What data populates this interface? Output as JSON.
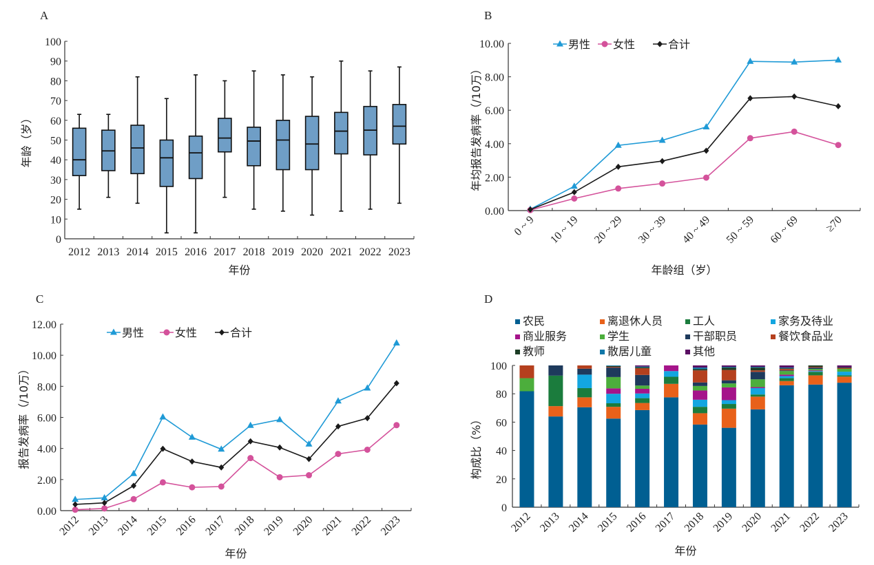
{
  "chart_data": [
    {
      "panel": "A",
      "type": "box",
      "xlabel": "年份",
      "ylabel": "年龄（岁）",
      "ylim": [
        0,
        100
      ],
      "yticks": [
        "0",
        "10",
        "20",
        "30",
        "40",
        "50",
        "60",
        "70",
        "80",
        "90",
        "100"
      ],
      "categories": [
        "2012",
        "2013",
        "2014",
        "2015",
        "2016",
        "2017",
        "2018",
        "2019",
        "2020",
        "2021",
        "2022",
        "2023"
      ],
      "boxes": [
        {
          "min": 15,
          "q1": 32,
          "median": 40,
          "q3": 56,
          "max": 63
        },
        {
          "min": 21,
          "q1": 34.5,
          "median": 44.5,
          "q3": 55,
          "max": 63
        },
        {
          "min": 18,
          "q1": 33,
          "median": 46,
          "q3": 57.5,
          "max": 82
        },
        {
          "min": 3,
          "q1": 26.5,
          "median": 41,
          "q3": 50,
          "max": 71
        },
        {
          "min": 3,
          "q1": 30.5,
          "median": 43.5,
          "q3": 52,
          "max": 83
        },
        {
          "min": 21,
          "q1": 44,
          "median": 51,
          "q3": 61,
          "max": 80
        },
        {
          "min": 15,
          "q1": 37,
          "median": 49.5,
          "q3": 56.5,
          "max": 85
        },
        {
          "min": 14,
          "q1": 35,
          "median": 50,
          "q3": 60,
          "max": 83
        },
        {
          "min": 12,
          "q1": 35,
          "median": 48,
          "q3": 62,
          "max": 82
        },
        {
          "min": 14,
          "q1": 43,
          "median": 54.5,
          "q3": 64,
          "max": 90
        },
        {
          "min": 15,
          "q1": 42.5,
          "median": 55,
          "q3": 67,
          "max": 85
        },
        {
          "min": 18,
          "q1": 48,
          "median": 57,
          "q3": 68,
          "max": 87
        }
      ],
      "box_color": "#6f9ec6"
    },
    {
      "panel": "B",
      "type": "line",
      "xlabel": "年龄组（岁）",
      "ylabel": "年均报告发病率（/10万）",
      "ylim": [
        0,
        10
      ],
      "yticks": [
        "0.00",
        "2.00",
        "4.00",
        "6.00",
        "8.00",
        "10.00"
      ],
      "categories": [
        "0 ~ 9",
        "10 ~ 19",
        "20 ~ 29",
        "30 ~ 39",
        "40 ~ 49",
        "50 ~ 59",
        "60 ~ 69",
        "≥70"
      ],
      "legend_position": "top",
      "series": [
        {
          "name": "男性",
          "color": "#1f9ad6",
          "marker": "triangle",
          "values": [
            0.08,
            1.45,
            3.9,
            4.2,
            5.0,
            8.92,
            8.88,
            9.0
          ]
        },
        {
          "name": "女性",
          "color": "#d4529b",
          "marker": "circle",
          "values": [
            0.03,
            0.72,
            1.32,
            1.62,
            1.97,
            4.33,
            4.72,
            3.92
          ]
        },
        {
          "name": "合计",
          "color": "#1a1a1a",
          "marker": "diamond",
          "values": [
            0.06,
            1.1,
            2.62,
            2.96,
            3.58,
            6.72,
            6.82,
            6.24
          ]
        }
      ]
    },
    {
      "panel": "C",
      "type": "line",
      "xlabel": "年份",
      "ylabel": "报告发病率（/10万）",
      "ylim": [
        0,
        12
      ],
      "yticks": [
        "0.00",
        "2.00",
        "4.00",
        "6.00",
        "8.00",
        "10.00",
        "12.00"
      ],
      "categories": [
        "2012",
        "2013",
        "2014",
        "2015",
        "2016",
        "2017",
        "2018",
        "2019",
        "2020",
        "2021",
        "2022",
        "2023"
      ],
      "legend_position": "top",
      "series": [
        {
          "name": "男性",
          "color": "#1f9ad6",
          "marker": "triangle",
          "values": [
            0.72,
            0.82,
            2.38,
            6.02,
            4.72,
            3.95,
            5.48,
            5.85,
            4.28,
            7.05,
            7.88,
            10.78
          ]
        },
        {
          "name": "女性",
          "color": "#d4529b",
          "marker": "circle",
          "values": [
            0.06,
            0.14,
            0.74,
            1.82,
            1.5,
            1.55,
            3.38,
            2.15,
            2.28,
            3.65,
            3.92,
            5.5
          ]
        },
        {
          "name": "合计",
          "color": "#1a1a1a",
          "marker": "diamond",
          "values": [
            0.4,
            0.5,
            1.6,
            3.98,
            3.16,
            2.78,
            4.46,
            4.06,
            3.32,
            5.42,
            5.95,
            8.2
          ]
        }
      ]
    },
    {
      "panel": "D",
      "type": "stacked-bar",
      "xlabel": "年份",
      "ylabel": "构成比（%）",
      "ylim": [
        0,
        100
      ],
      "yticks": [
        "0",
        "20",
        "40",
        "60",
        "80",
        "100"
      ],
      "categories": [
        "2012",
        "2013",
        "2014",
        "2015",
        "2016",
        "2017",
        "2018",
        "2019",
        "2020",
        "2021",
        "2022",
        "2023"
      ],
      "legend_position": "top",
      "series": [
        {
          "name": "农民",
          "color": "#005f92",
          "values": [
            81.8,
            64,
            70.5,
            62.5,
            68.5,
            77.5,
            58.3,
            56,
            69,
            86,
            86.5,
            87.8
          ]
        },
        {
          "name": "离退休人员",
          "color": "#e8611a",
          "values": [
            0,
            7.3,
            7,
            8.3,
            5,
            9.5,
            8,
            13.5,
            9,
            3,
            6.5,
            4.3
          ]
        },
        {
          "name": "工人",
          "color": "#1b7c3d",
          "values": [
            0,
            21.5,
            6.5,
            2.5,
            3.4,
            5,
            4.5,
            3.3,
            1.5,
            2,
            2.5,
            1
          ]
        },
        {
          "name": "家务及待业",
          "color": "#13a6e0",
          "values": [
            0,
            0,
            9.5,
            6.7,
            3.3,
            4,
            5,
            2.7,
            4.5,
            1.5,
            0.5,
            2.5
          ]
        },
        {
          "name": "商业服务",
          "color": "#a5148a",
          "values": [
            0,
            0,
            0,
            3.8,
            3.3,
            4,
            6.5,
            9,
            0.7,
            1,
            0.5,
            0
          ]
        },
        {
          "name": "学生",
          "color": "#4cae3c",
          "values": [
            9.2,
            0,
            0,
            8,
            2.3,
            0,
            3.2,
            2.8,
            5.5,
            2.5,
            1,
            2
          ]
        },
        {
          "name": "干部职员",
          "color": "#1e3a5c",
          "values": [
            0,
            7.2,
            4.2,
            6.7,
            7.5,
            0,
            2.5,
            2.2,
            5.3,
            0.5,
            1,
            0
          ]
        },
        {
          "name": "餐饮食品业",
          "color": "#b5401e",
          "values": [
            9,
            0,
            2.3,
            0.5,
            4.7,
            0,
            8.5,
            7.3,
            1,
            1,
            0.5,
            0.5
          ]
        },
        {
          "name": "教师",
          "color": "#1c3d26",
          "values": [
            0,
            0,
            0,
            0.6,
            0.7,
            0,
            1,
            1.7,
            2,
            0.5,
            1,
            0.5
          ]
        },
        {
          "name": "散居儿童",
          "color": "#1077a8",
          "values": [
            0,
            0,
            0,
            0.4,
            0.5,
            0,
            1,
            0.5,
            0.5,
            0.5,
            0,
            0
          ]
        },
        {
          "name": "其他",
          "color": "#5a0f63",
          "values": [
            0,
            0,
            0,
            0,
            0.8,
            0,
            1.5,
            1,
            1,
            1.5,
            0,
            1.4
          ]
        }
      ]
    }
  ],
  "panel_labels": [
    "A",
    "B",
    "C",
    "D"
  ]
}
